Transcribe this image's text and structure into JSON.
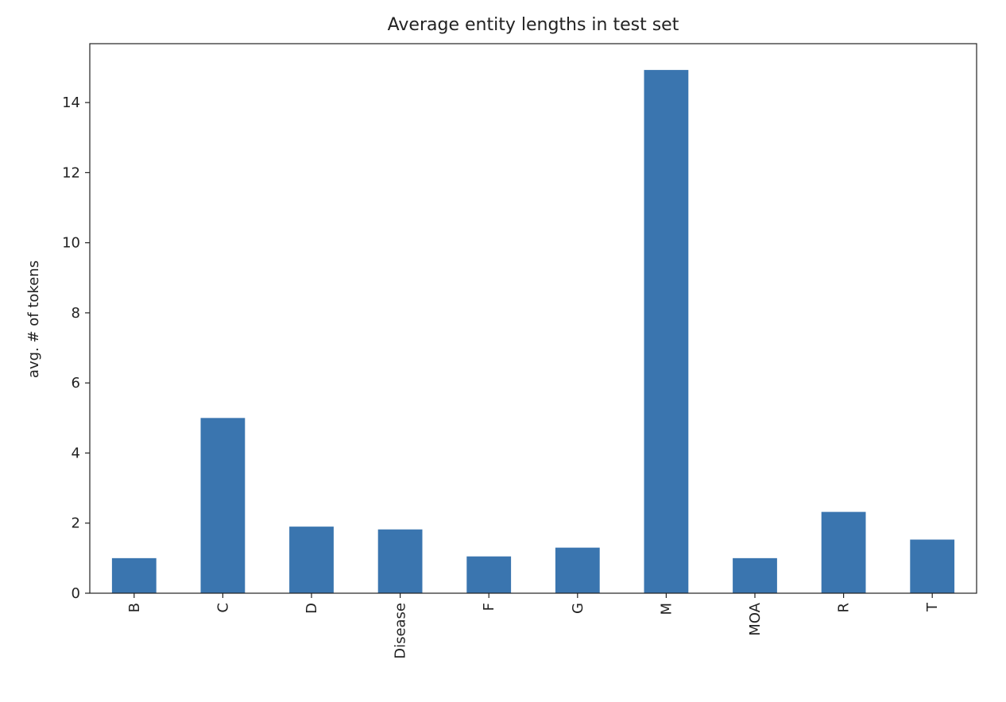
{
  "chart_data": {
    "type": "bar",
    "title": "Average entity lengths in test set",
    "xlabel": "",
    "ylabel": "avg. # of tokens",
    "categories": [
      "B",
      "C",
      "D",
      "Disease",
      "F",
      "G",
      "M",
      "MOA",
      "R",
      "T"
    ],
    "values": [
      1.0,
      5.0,
      1.9,
      1.82,
      1.05,
      1.3,
      14.93,
      1.0,
      2.32,
      1.53
    ],
    "yticks": [
      0,
      2,
      4,
      6,
      8,
      10,
      12,
      14
    ],
    "ylim": [
      0,
      15.68
    ],
    "bar_color": "#3a75af",
    "grid": false,
    "legend": "none"
  }
}
